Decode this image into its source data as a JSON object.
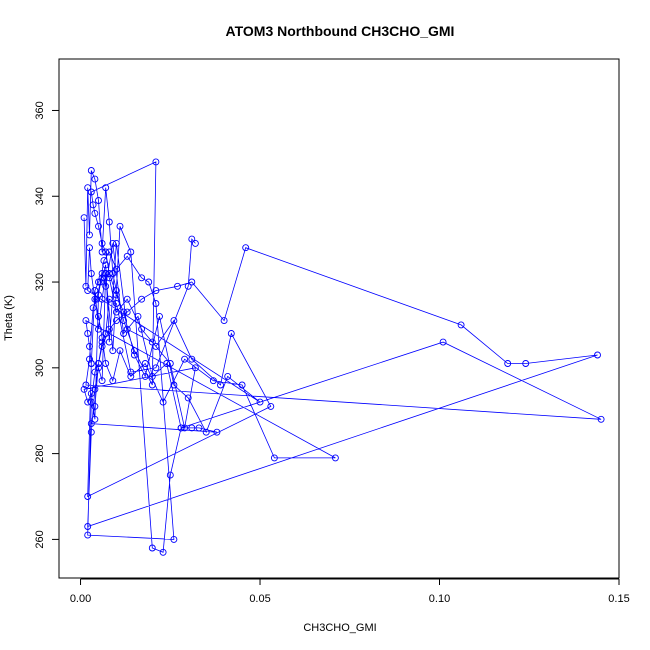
{
  "chart_data": {
    "type": "line",
    "title": "ATOM3 Northbound CH3CHO_GMI",
    "xlabel": "CH3CHO_GMI",
    "ylabel": "Theta (K)",
    "xlim": [
      -0.006,
      0.15
    ],
    "ylim": [
      251,
      372
    ],
    "x_ticks": [
      0.0,
      0.05,
      0.1,
      0.15
    ],
    "x_tick_labels": [
      "0.00",
      "0.05",
      "0.10",
      "0.15"
    ],
    "y_ticks": [
      260,
      280,
      300,
      320,
      340,
      360
    ],
    "y_tick_labels": [
      "260",
      "280",
      "300",
      "320",
      "340",
      "360"
    ],
    "grid": false,
    "color": "#0000ff",
    "markers": "open-circle",
    "series": [
      {
        "x": [
          0.001,
          0.0015,
          0.002,
          0.0025,
          0.003,
          0.004,
          0.005,
          0.006,
          0.007,
          0.008,
          0.009,
          0.01,
          0.012,
          0.015,
          0.02,
          0.021,
          0.003,
          0.0035,
          0.004,
          0.005,
          0.006,
          0.007,
          0.008,
          0.01,
          0.012,
          0.015,
          0.018,
          0.022,
          0.026,
          0.03,
          0.035,
          0.041,
          0.05,
          0.002,
          0.0025,
          0.003,
          0.004,
          0.005,
          0.006,
          0.007,
          0.009,
          0.011,
          0.014,
          0.018,
          0.023,
          0.029,
          0.037,
          0.045,
          0.054,
          0.071,
          0.0015,
          0.002,
          0.0025,
          0.003,
          0.004,
          0.005,
          0.006,
          0.007,
          0.008,
          0.01,
          0.013,
          0.017,
          0.021,
          0.026,
          0.031,
          0.039,
          0.042,
          0.053,
          0.002,
          0.003,
          0.004,
          0.005,
          0.006,
          0.007,
          0.008,
          0.01,
          0.013,
          0.02,
          0.025,
          0.029,
          0.032,
          0.001,
          0.002,
          0.003,
          0.004,
          0.005,
          0.006,
          0.007,
          0.009,
          0.012,
          0.016,
          0.02,
          0.024,
          0.028,
          0.031,
          0.033,
          0.038,
          0.003,
          0.004,
          0.005,
          0.006,
          0.008,
          0.01,
          0.013,
          0.017,
          0.021,
          0.027,
          0.031,
          0.04,
          0.046,
          0.106,
          0.119,
          0.124,
          0.144,
          0.002,
          0.003,
          0.004,
          0.005,
          0.006,
          0.007,
          0.009,
          0.011,
          0.014,
          0.02,
          0.023,
          0.025,
          0.028,
          0.101,
          0.145,
          0.0015,
          0.0025,
          0.0035,
          0.0045,
          0.0055,
          0.0065,
          0.008,
          0.01,
          0.013,
          0.017,
          0.019,
          0.021,
          0.026,
          0.002,
          0.003,
          0.004,
          0.005,
          0.006,
          0.007,
          0.008,
          0.01,
          0.014,
          0.021,
          0.03,
          0.031,
          0.032
        ],
        "y": [
          335,
          319,
          342,
          331,
          346,
          344,
          339,
          327,
          342,
          334,
          322,
          318,
          311,
          304,
          296,
          348,
          341,
          338,
          336,
          333,
          329,
          327,
          322,
          317,
          313,
          303,
          298,
          312,
          296,
          293,
          285,
          298,
          292,
          318,
          328,
          322,
          316,
          312,
          307,
          301,
          297,
          304,
          298,
          301,
          292,
          302,
          297,
          296,
          279,
          279,
          311,
          308,
          305,
          301,
          318,
          309,
          316,
          322,
          321,
          313,
          316,
          309,
          305,
          311,
          302,
          296,
          308,
          291,
          270,
          301,
          318,
          320,
          321,
          324,
          306,
          329,
          309,
          306,
          301,
          286,
          300,
          295,
          292,
          294,
          288,
          317,
          322,
          319,
          329,
          308,
          312,
          298,
          301,
          286,
          286,
          286,
          285,
          287,
          291,
          301,
          305,
          309,
          311,
          313,
          316,
          318,
          319,
          320,
          311,
          328,
          310,
          301,
          301,
          303,
          263,
          285,
          295,
          300,
          297,
          322,
          304,
          333,
          327,
          258,
          257,
          275,
          286,
          306,
          288,
          296,
          302,
          314,
          316,
          320,
          325,
          327,
          323,
          326,
          321,
          320,
          315,
          260,
          261,
          292,
          299,
          301,
          306,
          308,
          316,
          315,
          299,
          300,
          319,
          330,
          329
        ]
      }
    ]
  }
}
